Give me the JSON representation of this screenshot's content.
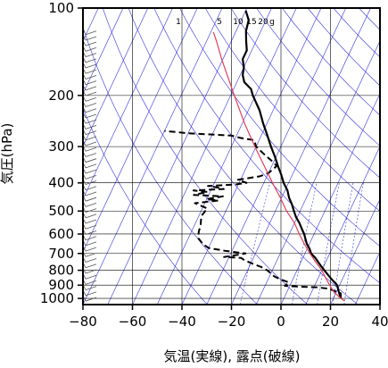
{
  "chart_data": {
    "type": "line",
    "subtype": "skew-T log-P thermodynamic diagram",
    "xlabel": "気温(実線), 露点(破線)",
    "ylabel": "気圧(hPa)",
    "xlim": [
      -80,
      40
    ],
    "ylim": [
      1050,
      100
    ],
    "y_scale": "log",
    "x_ticks": [
      "−80",
      "−60",
      "−40",
      "−20",
      "0",
      "20",
      "40"
    ],
    "x_tick_values": [
      -80,
      -60,
      -40,
      -20,
      0,
      20,
      40
    ],
    "y_ticks": [
      "100",
      "200",
      "300",
      "400",
      "500",
      "600",
      "700",
      "800",
      "900",
      "1000"
    ],
    "y_tick_values": [
      100,
      200,
      300,
      400,
      500,
      600,
      700,
      800,
      900,
      1000
    ],
    "grid": true,
    "mixing_ratio_labels": [
      "1",
      "5",
      "10",
      "15",
      "20",
      "g"
    ],
    "mixing_ratio_values": [
      1,
      5,
      10,
      15,
      20
    ],
    "colors": {
      "temperature": "#000000",
      "dewpoint": "#000000",
      "parcel": "#e0405a",
      "guide_lines": "#3333dd",
      "grid": "#000000"
    },
    "series": [
      {
        "role": "temperature",
        "style": "solid",
        "points": [
          [
            1000,
            23
          ],
          [
            975,
            22
          ],
          [
            950,
            21
          ],
          [
            925,
            20
          ],
          [
            900,
            19
          ],
          [
            875,
            17
          ],
          [
            850,
            15
          ],
          [
            825,
            13
          ],
          [
            800,
            11
          ],
          [
            775,
            9
          ],
          [
            750,
            7
          ],
          [
            725,
            5
          ],
          [
            700,
            2.5
          ],
          [
            675,
            1
          ],
          [
            650,
            -1
          ],
          [
            625,
            -2.5
          ],
          [
            600,
            -4
          ],
          [
            575,
            -6
          ],
          [
            550,
            -8
          ],
          [
            525,
            -10.5
          ],
          [
            500,
            -12.5
          ],
          [
            475,
            -14.5
          ],
          [
            450,
            -17
          ],
          [
            425,
            -19
          ],
          [
            400,
            -22
          ],
          [
            375,
            -24.5
          ],
          [
            350,
            -27.5
          ],
          [
            325,
            -30.5
          ],
          [
            300,
            -34
          ],
          [
            275,
            -37.5
          ],
          [
            250,
            -41.5
          ],
          [
            225,
            -45.5
          ],
          [
            200,
            -51
          ],
          [
            190,
            -53
          ],
          [
            180,
            -57
          ],
          [
            175,
            -58
          ],
          [
            170,
            -59
          ],
          [
            160,
            -60
          ],
          [
            150,
            -62
          ],
          [
            140,
            -62
          ],
          [
            130,
            -64
          ],
          [
            120,
            -66
          ],
          [
            110,
            -67
          ],
          [
            102,
            -70
          ]
        ]
      },
      {
        "role": "dewpoint",
        "style": "dashed",
        "points": [
          [
            1000,
            23
          ],
          [
            960,
            22
          ],
          [
            925,
            16
          ],
          [
            915,
            11
          ],
          [
            910,
            3
          ],
          [
            905,
            -2
          ],
          [
            880,
            -1
          ],
          [
            860,
            -5
          ],
          [
            840,
            -8
          ],
          [
            820,
            -10
          ],
          [
            800,
            -12
          ],
          [
            780,
            -15
          ],
          [
            760,
            -19
          ],
          [
            740,
            -23
          ],
          [
            725,
            -25
          ],
          [
            720,
            -32
          ],
          [
            710,
            -28
          ],
          [
            700,
            -24
          ],
          [
            685,
            -33
          ],
          [
            670,
            -40
          ],
          [
            650,
            -43
          ],
          [
            620,
            -46
          ],
          [
            590,
            -47
          ],
          [
            560,
            -47.5
          ],
          [
            520,
            -49
          ],
          [
            490,
            -48
          ],
          [
            470,
            -54
          ],
          [
            460,
            -45
          ],
          [
            455,
            -50
          ],
          [
            445,
            -44
          ],
          [
            440,
            -56
          ],
          [
            430,
            -51
          ],
          [
            425,
            -57
          ],
          [
            420,
            -45
          ],
          [
            415,
            -48
          ],
          [
            410,
            -52
          ],
          [
            405,
            -41
          ],
          [
            400,
            -37
          ],
          [
            390,
            -41
          ],
          [
            380,
            -33
          ],
          [
            370,
            -30
          ],
          [
            360,
            -29
          ],
          [
            350,
            -28
          ],
          [
            340,
            -30
          ],
          [
            320,
            -35
          ],
          [
            300,
            -40
          ],
          [
            285,
            -42
          ],
          [
            280,
            -48
          ],
          [
            275,
            -52
          ],
          [
            270,
            -70
          ],
          [
            265,
            -80
          ]
        ]
      },
      {
        "role": "parcel",
        "style": "solid",
        "points": [
          [
            1020,
            25
          ],
          [
            1000,
            23
          ],
          [
            950,
            19
          ],
          [
            900,
            16
          ],
          [
            850,
            13
          ],
          [
            800,
            10
          ],
          [
            750,
            6
          ],
          [
            700,
            2
          ],
          [
            650,
            -2
          ],
          [
            600,
            -6
          ],
          [
            550,
            -10
          ],
          [
            500,
            -15.5
          ],
          [
            450,
            -20.5
          ],
          [
            400,
            -26.5
          ],
          [
            350,
            -33
          ],
          [
            300,
            -40.5
          ],
          [
            250,
            -49
          ],
          [
            200,
            -58.5
          ],
          [
            150,
            -70.5
          ],
          [
            130,
            -76
          ],
          [
            121,
            -79
          ]
        ]
      }
    ]
  }
}
